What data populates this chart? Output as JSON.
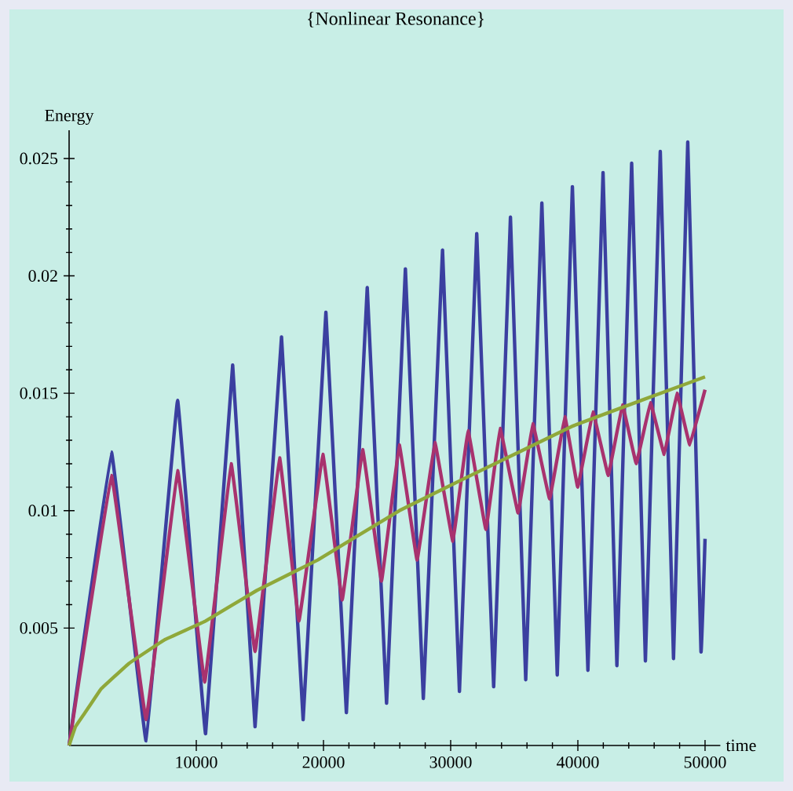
{
  "chart_data": {
    "type": "line",
    "title": "{Nonlinear Resonance}",
    "ylabel": "Energy",
    "xlabel": "time",
    "xlim": [
      0,
      51200
    ],
    "ylim": [
      0,
      0.0262
    ],
    "xticks": [
      10000,
      20000,
      30000,
      40000,
      50000
    ],
    "yticks": [
      0.005,
      0.01,
      0.015,
      0.02,
      0.025
    ],
    "grid": false,
    "marker": "none",
    "line_style": "solid",
    "series": [
      {
        "color": "#3b3fa0",
        "x": [
          0,
          3330,
          6050,
          8530,
          10730,
          12860,
          14620,
          16700,
          18400,
          20190,
          21800,
          23440,
          24960,
          26440,
          27850,
          29360,
          30690,
          32050,
          33380,
          34700,
          35900,
          37170,
          38380,
          39570,
          40790,
          41980,
          43070,
          44230,
          45310,
          46480,
          47520,
          48640,
          49680,
          50000
        ],
        "values": [
          0,
          0.0125,
          0.0002,
          0.0147,
          0.0005,
          0.0162,
          0.0008,
          0.0174,
          0.0011,
          0.01845,
          0.0014,
          0.0195,
          0.0018,
          0.0203,
          0.002,
          0.0211,
          0.0023,
          0.0218,
          0.0025,
          0.0225,
          0.0028,
          0.0231,
          0.003,
          0.0238,
          0.0032,
          0.0244,
          0.0034,
          0.0248,
          0.0036,
          0.0253,
          0.0037,
          0.0257,
          0.004,
          0.0088
        ]
      },
      {
        "color": "#a8326e",
        "x": [
          0,
          3330,
          6050,
          8530,
          10660,
          12740,
          14620,
          16550,
          18070,
          19950,
          21470,
          23080,
          24560,
          25960,
          27360,
          28760,
          30170,
          31370,
          32770,
          33890,
          35300,
          36460,
          37780,
          38980,
          39990,
          41190,
          42390,
          43510,
          44590,
          45710,
          46790,
          47800,
          48800,
          50000
        ],
        "values": [
          0,
          0.0115,
          0.0011,
          0.0117,
          0.0027,
          0.012,
          0.004,
          0.01225,
          0.0053,
          0.0124,
          0.0062,
          0.0126,
          0.007,
          0.0128,
          0.0079,
          0.0129,
          0.0087,
          0.0134,
          0.0092,
          0.0135,
          0.0099,
          0.0137,
          0.0105,
          0.014,
          0.011,
          0.0142,
          0.0115,
          0.0145,
          0.012,
          0.0146,
          0.0124,
          0.015,
          0.0128,
          0.01515
        ]
      },
      {
        "color": "#8fa83a",
        "x": [
          0,
          500,
          1320,
          2500,
          4720,
          7500,
          10730,
          14750,
          19550,
          25960,
          31570,
          39580,
          45000,
          50000
        ],
        "values": [
          0,
          0.0008,
          0.00145,
          0.0024,
          0.0035,
          0.0045,
          0.0053,
          0.0066,
          0.0079,
          0.01,
          0.0115,
          0.0136,
          0.0147,
          0.0157
        ]
      }
    ]
  }
}
